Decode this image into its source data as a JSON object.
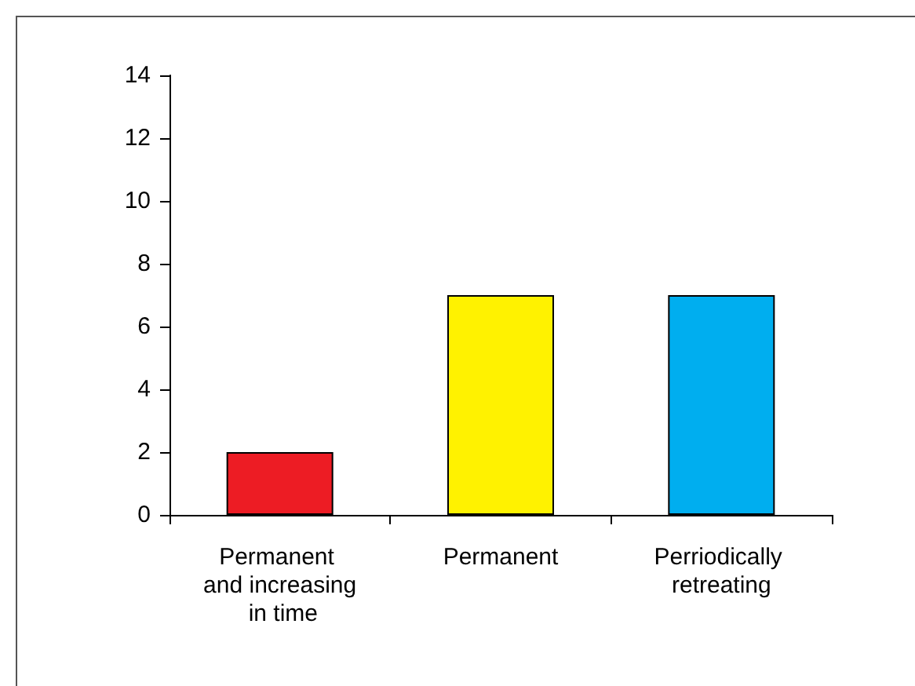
{
  "chart_data": {
    "type": "bar",
    "categories": [
      "Permanent and increasing in time",
      "Permanent",
      "Perriodically retreating"
    ],
    "values": [
      2,
      7,
      7
    ],
    "colors": [
      "#ed1c24",
      "#fff200",
      "#00aeef"
    ],
    "ylim": [
      0,
      14
    ],
    "yticks": [
      0,
      2,
      4,
      6,
      8,
      10,
      12,
      14
    ],
    "grid": false
  }
}
